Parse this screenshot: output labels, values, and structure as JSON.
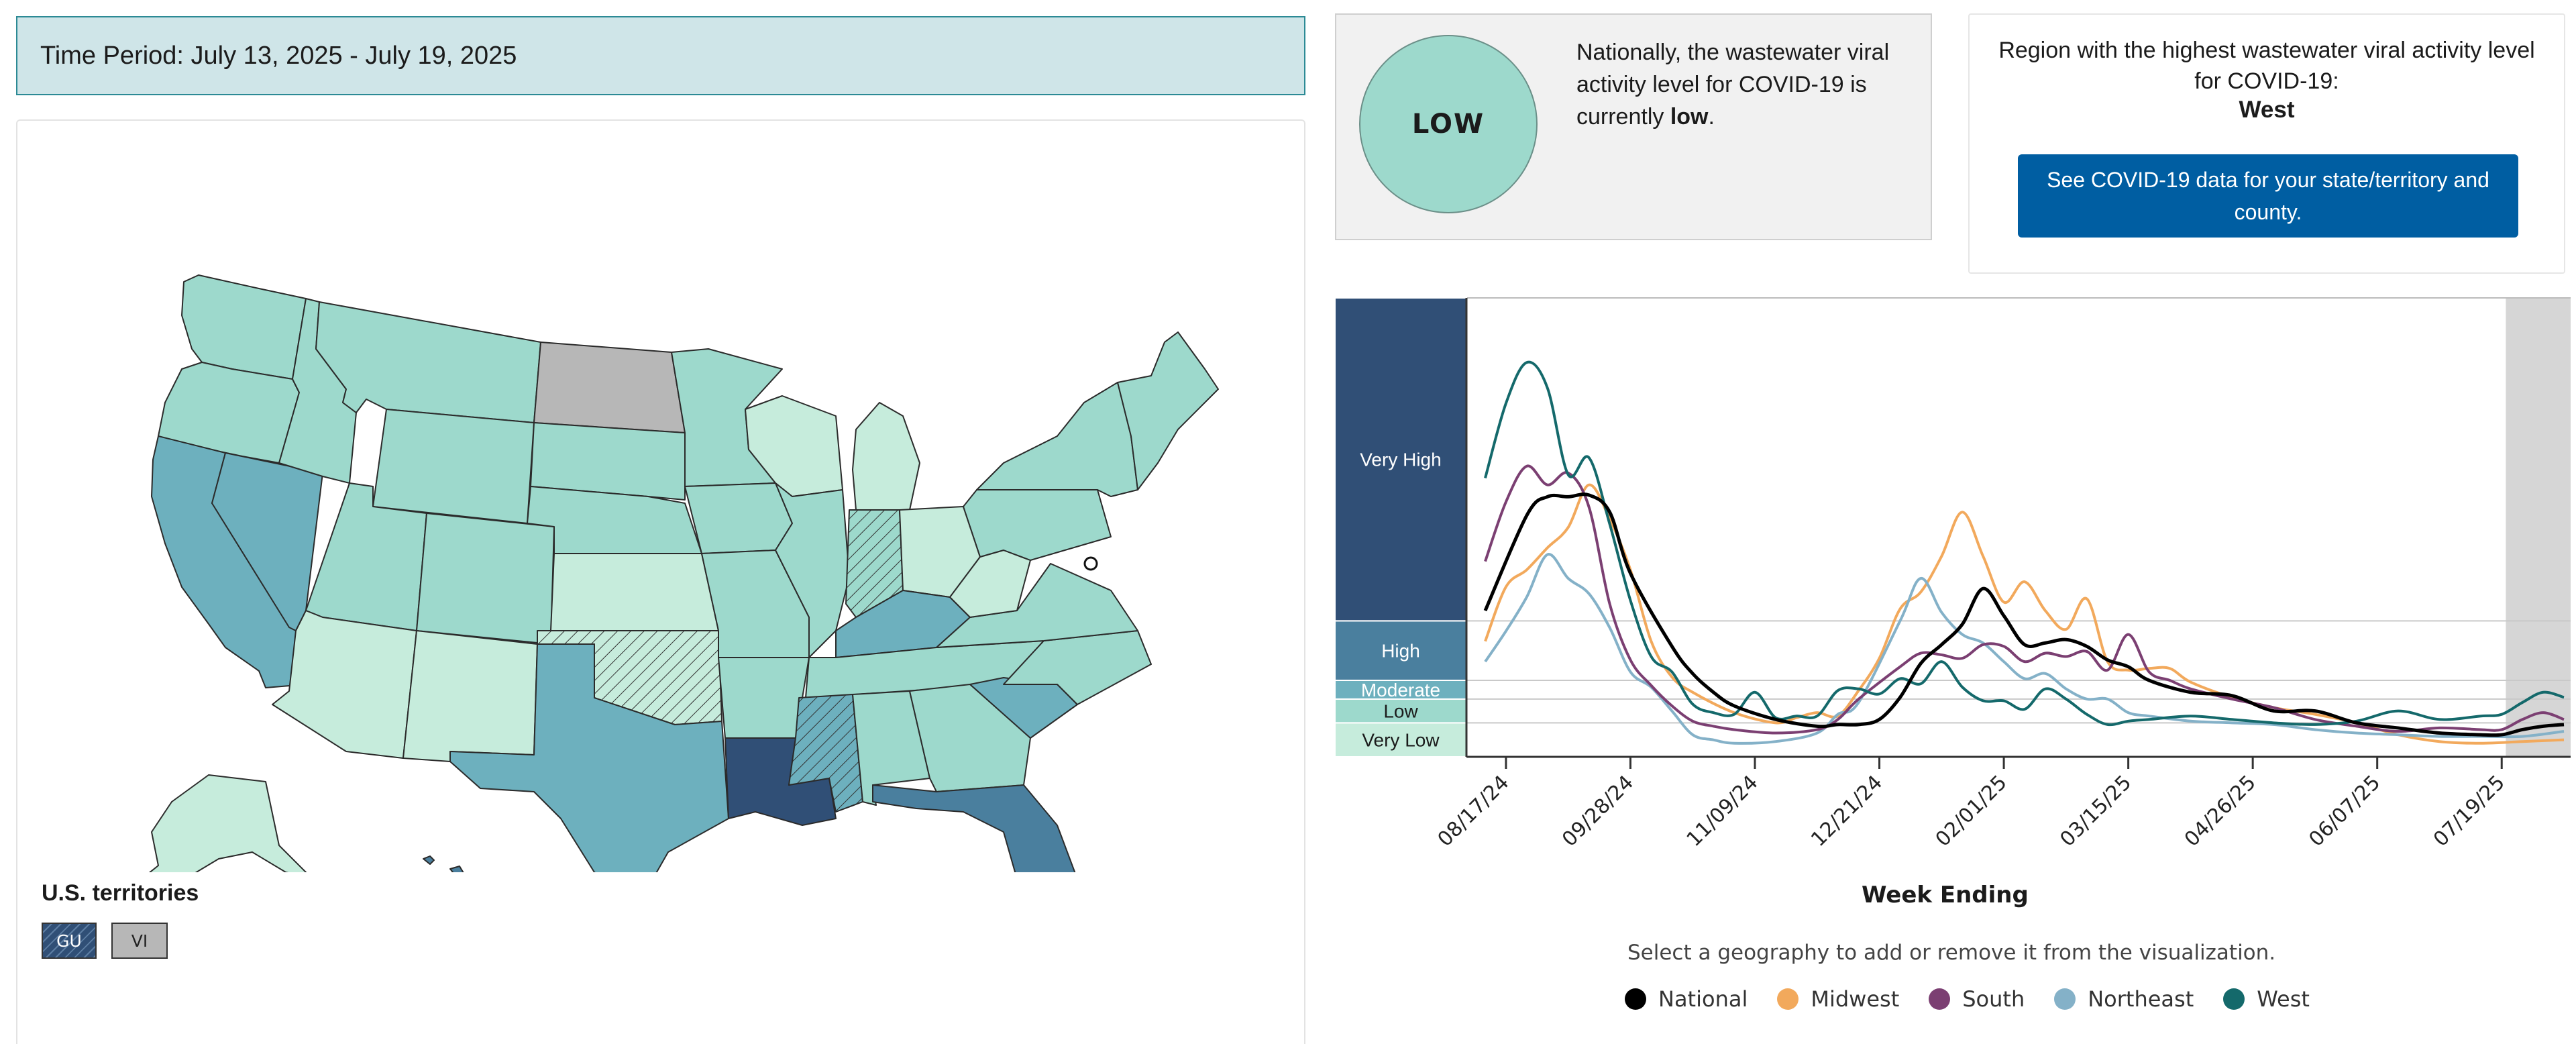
{
  "time_period": "Time Period: July 13, 2025 - July 19, 2025",
  "colors": {
    "very_low": "#c6ecdc",
    "low": "#9dd9cc",
    "moderate": "#6db0be",
    "high": "#4a7f9e",
    "very_high": "#304f76",
    "no_data": "#b7b7b7"
  },
  "national_status": {
    "circle_label": "LOW",
    "text_before": "Nationally, the wastewater viral activity level for COVID-19 is currently",
    "text_level": "low",
    "text_after": "."
  },
  "highest_region": {
    "heading": "Region with the highest wastewater viral activity level for COVID-19:",
    "region": "West",
    "button_label": "See COVID-19 data for your state/territory and county."
  },
  "map": {
    "states": [
      {
        "name": "Washington",
        "level": "low"
      },
      {
        "name": "Oregon",
        "level": "low"
      },
      {
        "name": "California",
        "level": "moderate"
      },
      {
        "name": "Nevada",
        "level": "moderate"
      },
      {
        "name": "Idaho",
        "level": "low"
      },
      {
        "name": "Montana",
        "level": "low"
      },
      {
        "name": "Wyoming",
        "level": "low"
      },
      {
        "name": "Utah",
        "level": "low"
      },
      {
        "name": "Colorado",
        "level": "low"
      },
      {
        "name": "Arizona",
        "level": "very_low"
      },
      {
        "name": "New Mexico",
        "level": "very_low"
      },
      {
        "name": "North Dakota",
        "level": "no_data"
      },
      {
        "name": "South Dakota",
        "level": "low"
      },
      {
        "name": "Nebraska",
        "level": "low"
      },
      {
        "name": "Kansas",
        "level": "very_low"
      },
      {
        "name": "Oklahoma",
        "level": "very_low"
      },
      {
        "name": "Texas",
        "level": "moderate"
      },
      {
        "name": "Minnesota",
        "level": "low"
      },
      {
        "name": "Iowa",
        "level": "low"
      },
      {
        "name": "Missouri",
        "level": "low"
      },
      {
        "name": "Arkansas",
        "level": "low"
      },
      {
        "name": "Louisiana",
        "level": "very_high"
      },
      {
        "name": "Wisconsin",
        "level": "very_low"
      },
      {
        "name": "Illinois",
        "level": "low"
      },
      {
        "name": "Michigan",
        "level": "very_low"
      },
      {
        "name": "Indiana",
        "level": "low"
      },
      {
        "name": "Ohio",
        "level": "very_low"
      },
      {
        "name": "Kentucky",
        "level": "moderate"
      },
      {
        "name": "Tennessee",
        "level": "low"
      },
      {
        "name": "Mississippi",
        "level": "moderate"
      },
      {
        "name": "Alabama",
        "level": "low"
      },
      {
        "name": "Georgia",
        "level": "low"
      },
      {
        "name": "Florida",
        "level": "high"
      },
      {
        "name": "South Carolina",
        "level": "moderate"
      },
      {
        "name": "North Carolina",
        "level": "low"
      },
      {
        "name": "Virginia",
        "level": "low"
      },
      {
        "name": "West Virginia",
        "level": "very_low"
      },
      {
        "name": "Pennsylvania",
        "level": "low"
      },
      {
        "name": "New York",
        "level": "low"
      },
      {
        "name": "Maine",
        "level": "low"
      },
      {
        "name": "Alaska",
        "level": "very_low"
      },
      {
        "name": "Hawaii",
        "level": "high"
      }
    ],
    "territories_title": "U.S. territories",
    "territories": [
      {
        "label": "GU",
        "level": "very_high"
      },
      {
        "label": "VI",
        "level": "no_data"
      }
    ]
  },
  "chart_data": {
    "type": "line",
    "xlabel": "Week Ending",
    "x_ticks": [
      "08/17/24",
      "09/28/24",
      "11/09/24",
      "12/21/24",
      "02/01/25",
      "03/15/25",
      "04/26/25",
      "06/07/25",
      "07/19/25"
    ],
    "levels": [
      "Very High",
      "High",
      "Moderate",
      "Low",
      "Very Low"
    ],
    "y_range": [
      0,
      27
    ],
    "level_thresholds": [
      0,
      2,
      3.4,
      4.5,
      8,
      20
    ],
    "x_range_weeks": [
      0,
      52
    ],
    "series": [
      {
        "name": "National",
        "color": "#000000",
        "x": [
          0,
          2,
          3,
          4,
          5,
          6,
          7,
          9,
          10,
          11,
          12,
          14,
          16,
          17,
          18,
          19,
          20,
          21,
          22,
          23,
          24,
          25,
          26,
          27,
          28,
          29,
          30,
          31,
          32,
          34,
          36,
          38,
          40,
          42,
          44,
          46,
          48,
          49,
          50,
          51,
          52
        ],
        "y": [
          8.6,
          14.2,
          15.3,
          15.3,
          15.4,
          14.4,
          10.8,
          6.5,
          4.9,
          3.8,
          3.0,
          2.2,
          1.8,
          1.9,
          1.9,
          2.2,
          3.5,
          5.5,
          6.6,
          7.8,
          9.9,
          8.3,
          6.6,
          6.7,
          6.9,
          6.5,
          5.7,
          5.3,
          4.5,
          3.8,
          3.6,
          2.7,
          2.7,
          2.0,
          1.7,
          1.4,
          1.3,
          1.3,
          1.6,
          1.8,
          1.9
        ]
      },
      {
        "name": "Midwest",
        "color": "#f2a95c",
        "x": [
          0,
          1,
          2,
          3,
          4,
          5,
          6,
          7,
          8,
          9,
          10,
          12,
          14,
          15,
          16,
          17,
          18,
          19,
          20,
          21,
          22,
          23,
          24,
          25,
          26,
          27,
          28,
          29,
          30,
          31,
          32,
          33,
          34,
          36,
          38,
          40,
          42,
          44,
          46,
          48,
          50,
          52
        ],
        "y": [
          6.8,
          10.0,
          11.0,
          12.3,
          13.5,
          16.0,
          14.0,
          11.0,
          6.8,
          4.7,
          3.8,
          2.6,
          2.0,
          2.3,
          2.6,
          2.4,
          3.9,
          5.8,
          8.7,
          9.7,
          11.8,
          14.4,
          11.8,
          9.1,
          10.3,
          8.6,
          7.5,
          9.3,
          5.6,
          5.1,
          5.2,
          5.2,
          4.4,
          3.5,
          2.9,
          2.5,
          2.0,
          1.3,
          0.9,
          0.8,
          0.9,
          1.0
        ]
      },
      {
        "name": "South",
        "color": "#7b3f72",
        "x": [
          0,
          1,
          2,
          3,
          4,
          5,
          6,
          7,
          8,
          9,
          10,
          11,
          12,
          14,
          16,
          17,
          18,
          20,
          21,
          22,
          23,
          24,
          25,
          26,
          27,
          28,
          29,
          30,
          31,
          32,
          33,
          34,
          36,
          38,
          40,
          42,
          44,
          46,
          48,
          49,
          50,
          51,
          52
        ],
        "y": [
          11.5,
          15.0,
          17.1,
          16.0,
          16.7,
          14.7,
          9.0,
          5.7,
          4.2,
          3.0,
          2.1,
          1.8,
          1.6,
          1.4,
          1.6,
          2.2,
          3.4,
          5.3,
          6.1,
          6.0,
          5.8,
          6.6,
          6.5,
          5.6,
          6.1,
          5.9,
          6.2,
          5.1,
          7.2,
          5.0,
          4.5,
          4.0,
          3.4,
          2.9,
          2.2,
          1.8,
          1.5,
          1.7,
          1.6,
          1.6,
          2.2,
          2.6,
          2.2
        ]
      },
      {
        "name": "Northeast",
        "color": "#84b1c8",
        "x": [
          0,
          1,
          2,
          3,
          4,
          5,
          6,
          7,
          8,
          9,
          10,
          11,
          12,
          14,
          16,
          17,
          18,
          20,
          21,
          22,
          23,
          24,
          25,
          26,
          27,
          28,
          29,
          30,
          31,
          32,
          34,
          36,
          38,
          40,
          42,
          44,
          46,
          48,
          50,
          52
        ],
        "y": [
          5.6,
          7.4,
          9.4,
          11.9,
          10.5,
          9.6,
          7.6,
          5.0,
          4.1,
          2.7,
          1.3,
          1.0,
          0.8,
          0.9,
          1.4,
          2.5,
          3.2,
          8.0,
          10.5,
          8.5,
          7.2,
          6.7,
          5.6,
          4.6,
          4.9,
          4.0,
          3.4,
          3.4,
          2.6,
          2.4,
          2.1,
          2.0,
          1.9,
          1.6,
          1.4,
          1.3,
          1.2,
          1.2,
          1.2,
          1.5
        ]
      },
      {
        "name": "West",
        "color": "#14696b",
        "x": [
          0,
          1,
          2,
          3,
          4,
          5,
          6,
          7,
          8,
          9,
          10,
          11,
          12,
          13,
          14,
          15,
          16,
          17,
          18,
          19,
          20,
          21,
          22,
          23,
          24,
          25,
          26,
          27,
          28,
          29,
          30,
          31,
          32,
          34,
          36,
          38,
          40,
          42,
          44,
          46,
          48,
          49,
          50,
          51,
          52
        ],
        "y": [
          16.4,
          20.8,
          23.2,
          21.7,
          16.6,
          17.6,
          13.7,
          9.2,
          5.9,
          5.0,
          3.1,
          2.6,
          2.5,
          3.8,
          2.3,
          2.4,
          2.4,
          3.9,
          4.0,
          3.7,
          4.6,
          4.3,
          5.6,
          4.1,
          3.3,
          3.3,
          2.8,
          4.0,
          3.4,
          2.5,
          1.9,
          2.1,
          2.2,
          2.4,
          2.2,
          2.0,
          1.9,
          2.1,
          2.7,
          2.2,
          2.4,
          2.5,
          3.2,
          3.8,
          3.5
        ]
      }
    ]
  },
  "legend_hint": "Select a geography to add or remove it from the visualization."
}
